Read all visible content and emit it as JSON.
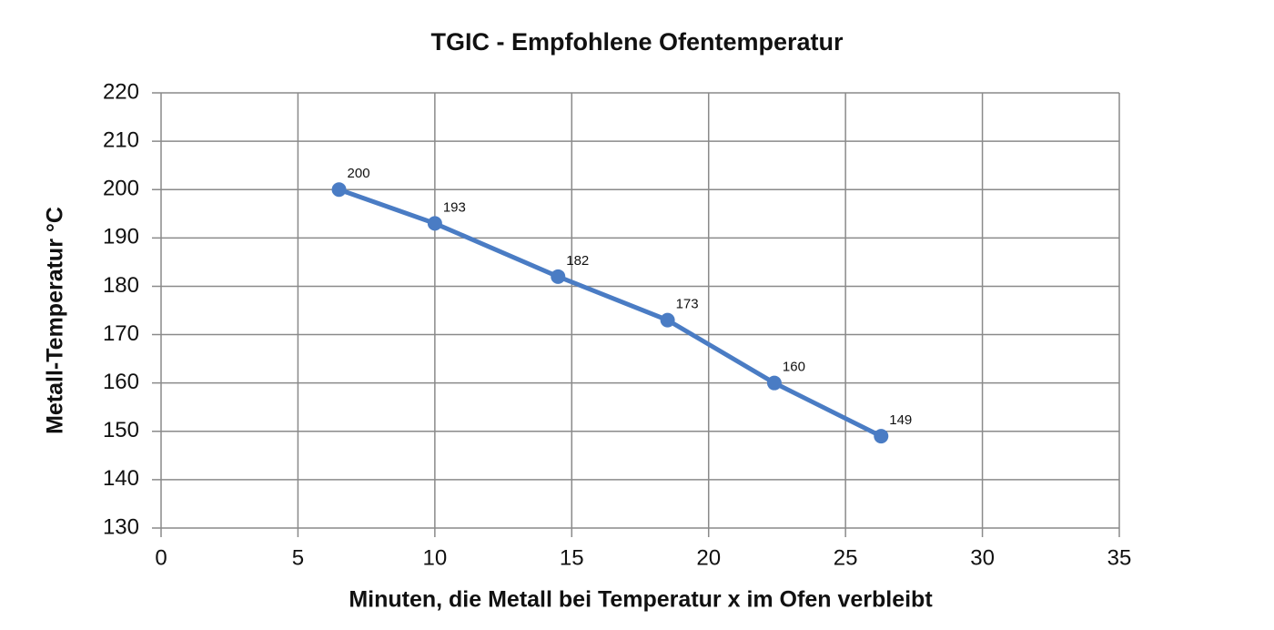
{
  "chart_data": {
    "type": "line",
    "title": "TGIC -  Empfohlene Ofentemperatur",
    "x_label": "Minuten, die Metall bei Temperatur x im Ofen verbleibt",
    "y_label": "Metall-Temperatur °C",
    "x": [
      6.5,
      10,
      14.5,
      18.5,
      22.4,
      26.3
    ],
    "series": [
      {
        "color": "#4a7cc4",
        "values": [
          200,
          193,
          182,
          173,
          160,
          149
        ]
      }
    ],
    "xlim": [
      0,
      35
    ],
    "xticks": [
      0,
      5,
      10,
      15,
      20,
      25,
      30,
      35
    ],
    "ylim": [
      130,
      220
    ],
    "yticks": [
      130,
      140,
      150,
      160,
      170,
      180,
      190,
      200,
      210,
      220
    ],
    "grid": true
  }
}
